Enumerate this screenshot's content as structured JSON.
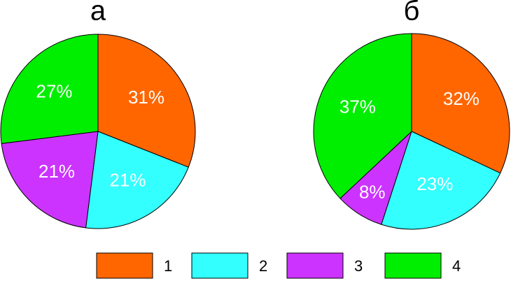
{
  "chart_data": [
    {
      "type": "pie",
      "title": "а",
      "values": [
        31,
        21,
        21,
        27
      ],
      "value_labels": [
        "31%",
        "21%",
        "21%",
        "27%"
      ]
    },
    {
      "type": "pie",
      "title": "б",
      "values": [
        32,
        23,
        8,
        37
      ],
      "value_labels": [
        "32%",
        "23%",
        "8%",
        "37%"
      ]
    }
  ],
  "legend": {
    "items": [
      {
        "name": "1",
        "color": "#ff6600"
      },
      {
        "name": "2",
        "color": "#33ffff"
      },
      {
        "name": "3",
        "color": "#cc33ff"
      },
      {
        "name": "4",
        "color": "#00ee00"
      }
    ]
  }
}
